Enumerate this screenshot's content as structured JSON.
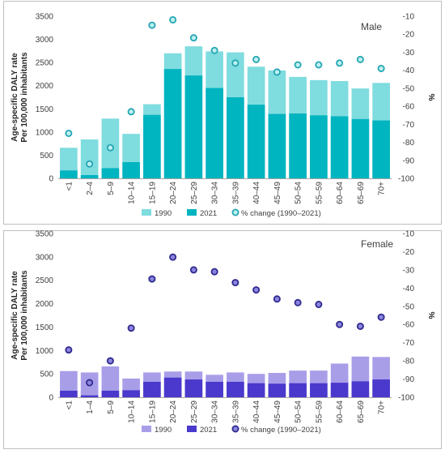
{
  "chart_data": [
    {
      "type": "bar",
      "panel_label": "Male",
      "categories": [
        "<1",
        "2–4",
        "5–9",
        "10–14",
        "15–19",
        "20–24",
        "25–29",
        "30–34",
        "35–39",
        "40–44",
        "45–49",
        "50–54",
        "55–59",
        "60–64",
        "65–69",
        "70+"
      ],
      "ylabel": "Age-specific DALY rate\nPer 100,000 inhabitants",
      "y2label": "%",
      "ylim": [
        0,
        3500
      ],
      "y2lim": [
        -100,
        -10
      ],
      "yticks": [
        0,
        500,
        1000,
        1500,
        2000,
        2500,
        3000,
        3500
      ],
      "y2ticks": [
        -100,
        -90,
        -80,
        -70,
        -60,
        -50,
        -40,
        -30,
        -20,
        -10
      ],
      "grid": false,
      "legend_position": "bottom-left",
      "colors": {
        "1990": "#7fdcdf",
        "2021": "#00b4c0",
        "pct_stroke": "#23a6b2",
        "pct_fill": "#bfeff2"
      },
      "series": [
        {
          "name": "1990",
          "kind": "bar",
          "values": [
            660,
            840,
            1290,
            960,
            1600,
            2700,
            2850,
            2740,
            2720,
            2410,
            2330,
            2190,
            2120,
            2100,
            1940,
            2060
          ]
        },
        {
          "name": "2021",
          "kind": "bar",
          "values": [
            170,
            70,
            220,
            350,
            1370,
            2360,
            2220,
            1950,
            1750,
            1590,
            1390,
            1400,
            1360,
            1340,
            1280,
            1250
          ]
        },
        {
          "name": "% change (1990–2021)",
          "kind": "marker",
          "axis": "right",
          "values": [
            -75,
            -92,
            -83,
            -63,
            -15,
            -12,
            -22,
            -29,
            -36,
            -34,
            -41,
            -37,
            -37,
            -36,
            -34,
            -39
          ]
        }
      ]
    },
    {
      "type": "bar",
      "panel_label": "Female",
      "categories": [
        "<1",
        "1–4",
        "5–9",
        "10–14",
        "15–19",
        "20–24",
        "25–29",
        "30–34",
        "35–39",
        "40–44",
        "45–49",
        "50–54",
        "55–59",
        "60–64",
        "65–69",
        "70+"
      ],
      "ylabel": "Age-specific DALY rate\nPer 100,000 inhabitants",
      "y2label": "%",
      "ylim": [
        0,
        3500
      ],
      "y2lim": [
        -100,
        -10
      ],
      "yticks": [
        0,
        500,
        1000,
        1500,
        2000,
        2500,
        3000,
        3500
      ],
      "y2ticks": [
        -100,
        -90,
        -80,
        -70,
        -60,
        -50,
        -40,
        -30,
        -20,
        -10
      ],
      "grid": false,
      "legend_position": "bottom-left",
      "colors": {
        "1990": "#a89ee8",
        "2021": "#4a39cc",
        "pct_stroke": "#2f2a8c",
        "pct_fill": "#8c84e0"
      },
      "series": [
        {
          "name": "1990",
          "kind": "bar",
          "values": [
            560,
            530,
            660,
            400,
            530,
            550,
            550,
            480,
            530,
            500,
            520,
            570,
            570,
            720,
            870,
            860
          ]
        },
        {
          "name": "2021",
          "kind": "bar",
          "values": [
            140,
            40,
            140,
            150,
            330,
            420,
            380,
            330,
            330,
            300,
            290,
            300,
            300,
            310,
            340,
            380
          ]
        },
        {
          "name": "% change (1990–2021)",
          "kind": "marker",
          "axis": "right",
          "values": [
            -74,
            -92,
            -80,
            -62,
            -35,
            -23,
            -30,
            -31,
            -37,
            -41,
            -46,
            -48,
            -49,
            -60,
            -61,
            -56
          ]
        }
      ]
    }
  ]
}
